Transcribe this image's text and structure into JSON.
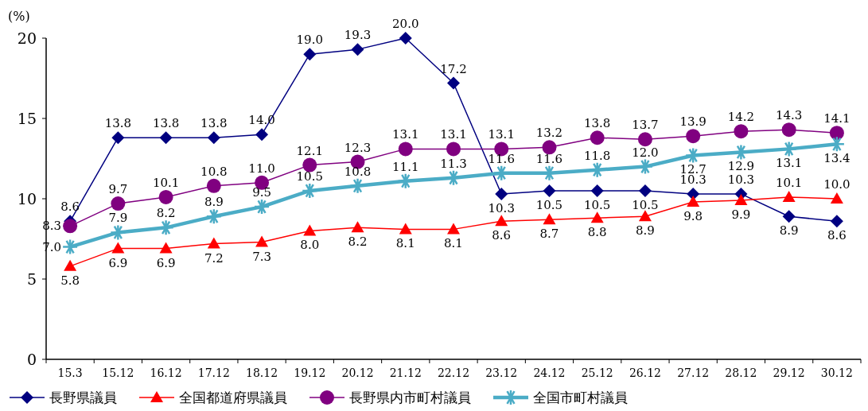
{
  "chart_data": {
    "type": "line",
    "ylabel": "(%)",
    "categories": [
      "15.3",
      "15.12",
      "16.12",
      "17.12",
      "18.12",
      "19.12",
      "20.12",
      "21.12",
      "22.12",
      "23.12",
      "24.12",
      "25.12",
      "26.12",
      "27.12",
      "28.12",
      "29.12",
      "30.12"
    ],
    "ylim": [
      0,
      20
    ],
    "yticks": [
      0,
      5,
      10,
      15,
      20
    ],
    "grid": false,
    "legend": "bottom",
    "series": [
      {
        "name": "長野県議員",
        "color": "#000080",
        "marker": "diamond",
        "values": [
          8.6,
          13.8,
          13.8,
          13.8,
          14.0,
          19.0,
          19.3,
          20.0,
          17.2,
          10.3,
          10.5,
          10.5,
          10.5,
          10.3,
          10.3,
          8.9,
          8.6
        ],
        "value_labels": [
          "8.6",
          "13.8",
          "13.8",
          "13.8",
          "14.0",
          "19.0",
          "19.3",
          "20.0",
          "17.2",
          "10.3",
          "10.5",
          "10.5",
          "10.5",
          "10.3",
          "10.3",
          "8.9",
          "8.6"
        ]
      },
      {
        "name": "全国都道府県議員",
        "color": "#ff0000",
        "marker": "triangle",
        "values": [
          5.8,
          6.9,
          6.9,
          7.2,
          7.3,
          8.0,
          8.2,
          8.1,
          8.1,
          8.6,
          8.7,
          8.8,
          8.9,
          9.8,
          9.9,
          10.1,
          10.0
        ],
        "value_labels": [
          "5.8",
          "6.9",
          "6.9",
          "7.2",
          "7.3",
          "8.0",
          "8.2",
          "8.1",
          "8.1",
          "8.6",
          "8.7",
          "8.8",
          "8.9",
          "9.8",
          "9.9",
          "10.1",
          "10.0"
        ]
      },
      {
        "name": "長野県内市町村議員",
        "color": "#800080",
        "marker": "circle",
        "values": [
          8.3,
          9.7,
          10.1,
          10.8,
          11.0,
          12.1,
          12.3,
          13.1,
          13.1,
          13.1,
          13.2,
          13.8,
          13.7,
          13.9,
          14.2,
          14.3,
          14.1
        ],
        "value_labels": [
          "8.3",
          "9.7",
          "10.1",
          "10.8",
          "11.0",
          "12.1",
          "12.3",
          "13.1",
          "13.1",
          "13.1",
          "13.2",
          "13.8",
          "13.7",
          "13.9",
          "14.2",
          "14.3",
          "14.1"
        ]
      },
      {
        "name": "全国市町村議員",
        "color": "#4bacc6",
        "marker": "cross",
        "values": [
          7.0,
          7.9,
          8.2,
          8.9,
          9.5,
          10.5,
          10.8,
          11.1,
          11.3,
          11.6,
          11.6,
          11.8,
          12.0,
          12.7,
          12.9,
          13.1,
          13.4
        ],
        "value_labels": [
          "7.0",
          "7.9",
          "8.2",
          "8.9",
          "9.5",
          "10.5",
          "10.8",
          "11.1",
          "11.3",
          "11.6",
          "11.6",
          "11.8",
          "12.0",
          "12.7",
          "12.9",
          "13.1",
          "13.4"
        ]
      }
    ]
  }
}
